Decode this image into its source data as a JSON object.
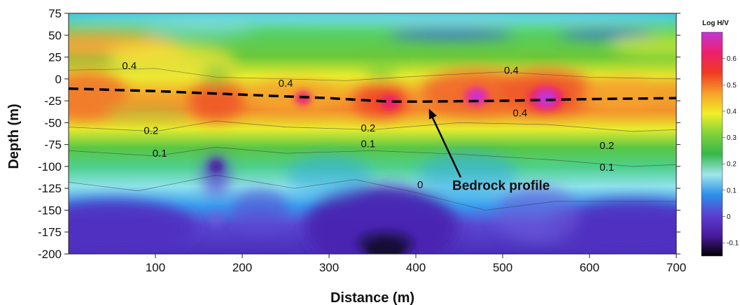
{
  "chart_data": {
    "type": "heatmap",
    "title": "",
    "xlabel": "Distance (m)",
    "ylabel": "Depth (m)",
    "xlim": [
      0,
      700
    ],
    "ylim": [
      -200,
      75
    ],
    "x_ticks": [
      100,
      200,
      300,
      400,
      500,
      600,
      700
    ],
    "y_ticks": [
      75,
      50,
      25,
      0,
      -25,
      -50,
      -75,
      -100,
      -125,
      -150,
      -175,
      -200
    ],
    "colorbar": {
      "title": "Log H/V",
      "range": [
        -0.15,
        0.7
      ],
      "ticks": [
        0.6,
        0.5,
        0.4,
        0.3,
        0.2,
        0.1,
        0,
        -0.1
      ],
      "colors": [
        "#000000",
        "#4a1a9e",
        "#5a3fd0",
        "#2c8fe8",
        "#9fe6ec",
        "#36b84a",
        "#7fd13a",
        "#f2ee2a",
        "#f7a02a",
        "#ef3b24",
        "#ee1f6e",
        "#c236d6"
      ]
    },
    "contour_labels": [
      {
        "text": "0.4",
        "x": 70,
        "y": 11
      },
      {
        "text": "0.4",
        "x": 250,
        "y": -9
      },
      {
        "text": "0.4",
        "x": 510,
        "y": 6
      },
      {
        "text": "0.4",
        "x": 520,
        "y": -43
      },
      {
        "text": "0.2",
        "x": 95,
        "y": -63
      },
      {
        "text": "0.1",
        "x": 105,
        "y": -89
      },
      {
        "text": "0.2",
        "x": 345,
        "y": -60
      },
      {
        "text": "0.1",
        "x": 345,
        "y": -78
      },
      {
        "text": "0.2",
        "x": 620,
        "y": -80
      },
      {
        "text": "0.1",
        "x": 620,
        "y": -105
      },
      {
        "text": "0",
        "x": 405,
        "y": -125
      }
    ],
    "bedrock_profile": [
      [
        0,
        -11
      ],
      [
        100,
        -14
      ],
      [
        200,
        -18
      ],
      [
        300,
        -22
      ],
      [
        370,
        -26
      ],
      [
        400,
        -26
      ],
      [
        500,
        -25
      ],
      [
        600,
        -23
      ],
      [
        700,
        -22
      ]
    ],
    "annotation": {
      "text": "Bedrock profile",
      "arrow_tip": [
        415,
        -34
      ],
      "text_at": [
        450,
        -122
      ]
    }
  }
}
